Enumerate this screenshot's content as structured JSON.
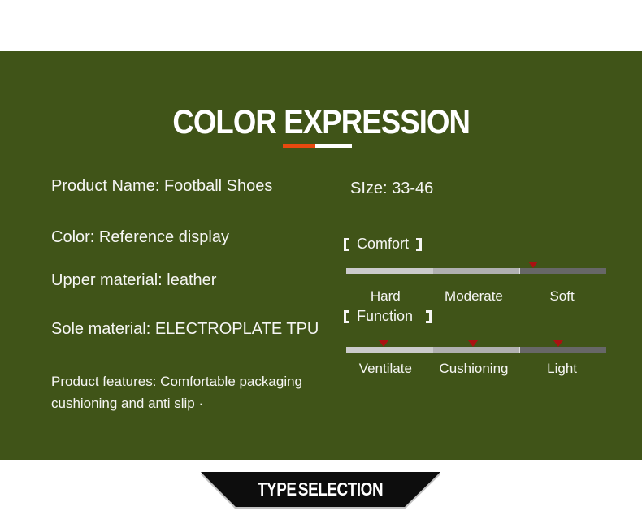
{
  "colors": {
    "panel_green": "#405418",
    "accent_orange": "#e8490f",
    "underline_white": "#ffffff",
    "marker_red": "#aa1111",
    "bar_segment_light": "#cbcbcb",
    "bar_segment_mid": "#b0b0b0",
    "bar_segment_dark": "#676767",
    "banner_black": "#0d0d0d",
    "text_white": "#f6f6f4"
  },
  "header": {
    "title": "COLOR EXPRESSION"
  },
  "product": {
    "name_line": "Product Name: Football Shoes",
    "color_line": "Color: Reference display",
    "upper_line": "Upper material: leather",
    "sole_line": "Sole material: ELECTROPLATE TPU",
    "features_line1": "Product features: Comfortable packaging",
    "features_line2": "cushioning and anti slip ·",
    "size_line": "SIze: 33-46"
  },
  "comfort_scale": {
    "title": "Comfort",
    "labels": [
      "Hard",
      "Moderate",
      "Soft"
    ],
    "marker_positions": [
      "71.9%"
    ]
  },
  "function_scale": {
    "title": "Function",
    "labels": [
      "Ventilate",
      "Cushioning",
      "Light"
    ],
    "marker_positions": [
      "14.4%",
      "48.8%",
      "81.6%"
    ]
  },
  "footer": {
    "banner_label": "TYPE SELECTION"
  }
}
